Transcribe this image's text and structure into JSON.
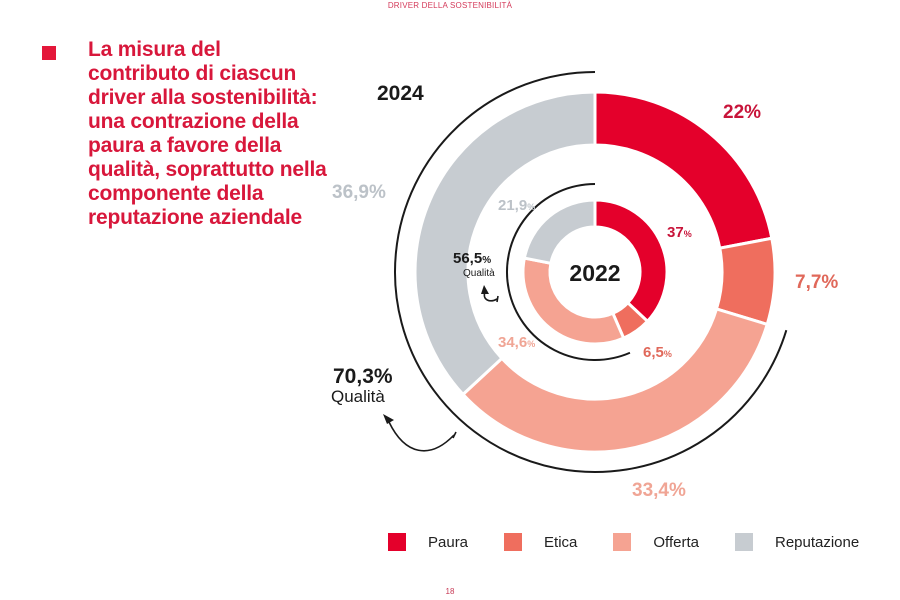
{
  "header": {
    "section_title": "DRIVER DELLA SOSTENIBILITÀ"
  },
  "headline": "La misura del contributo di ciascun driver alla sostenibilità: una contrazione della paura a favore della qualità, soprattutto nella componente della reputazione aziendale",
  "page_number": "18",
  "colors": {
    "Paura": "#e4002b",
    "Etica": "#ef6e5e",
    "Offerta": "#f5a392",
    "Reputazione": "#c7ccd1",
    "headline": "#d8173b"
  },
  "chart_data": [
    {
      "type": "pie",
      "variant": "donut-outer",
      "title": "2024",
      "categories": [
        "Paura",
        "Etica",
        "Offerta",
        "Reputazione"
      ],
      "values": [
        22.0,
        7.7,
        33.4,
        36.9
      ],
      "labels": [
        "22%",
        "7,7%",
        "33,4%",
        "36,9%"
      ],
      "annotation": {
        "value": "70,3%",
        "label": "Qualità",
        "covers": [
          "Offerta",
          "Reputazione"
        ]
      }
    },
    {
      "type": "pie",
      "variant": "donut-inner",
      "title": "2022",
      "categories": [
        "Paura",
        "Etica",
        "Offerta",
        "Reputazione"
      ],
      "values": [
        37.0,
        6.5,
        34.6,
        21.9
      ],
      "labels": [
        "37",
        "6,5",
        "34,6",
        "21,9"
      ],
      "label_suffix": "%",
      "annotation": {
        "value": "56,5",
        "suffix": "%",
        "label": "Qualità",
        "covers": [
          "Offerta",
          "Reputazione"
        ]
      }
    }
  ],
  "legend": [
    {
      "label": "Paura",
      "color": "#e4002b"
    },
    {
      "label": "Etica",
      "color": "#ef6e5e"
    },
    {
      "label": "Offerta",
      "color": "#f5a392"
    },
    {
      "label": "Reputazione",
      "color": "#c7ccd1"
    }
  ]
}
